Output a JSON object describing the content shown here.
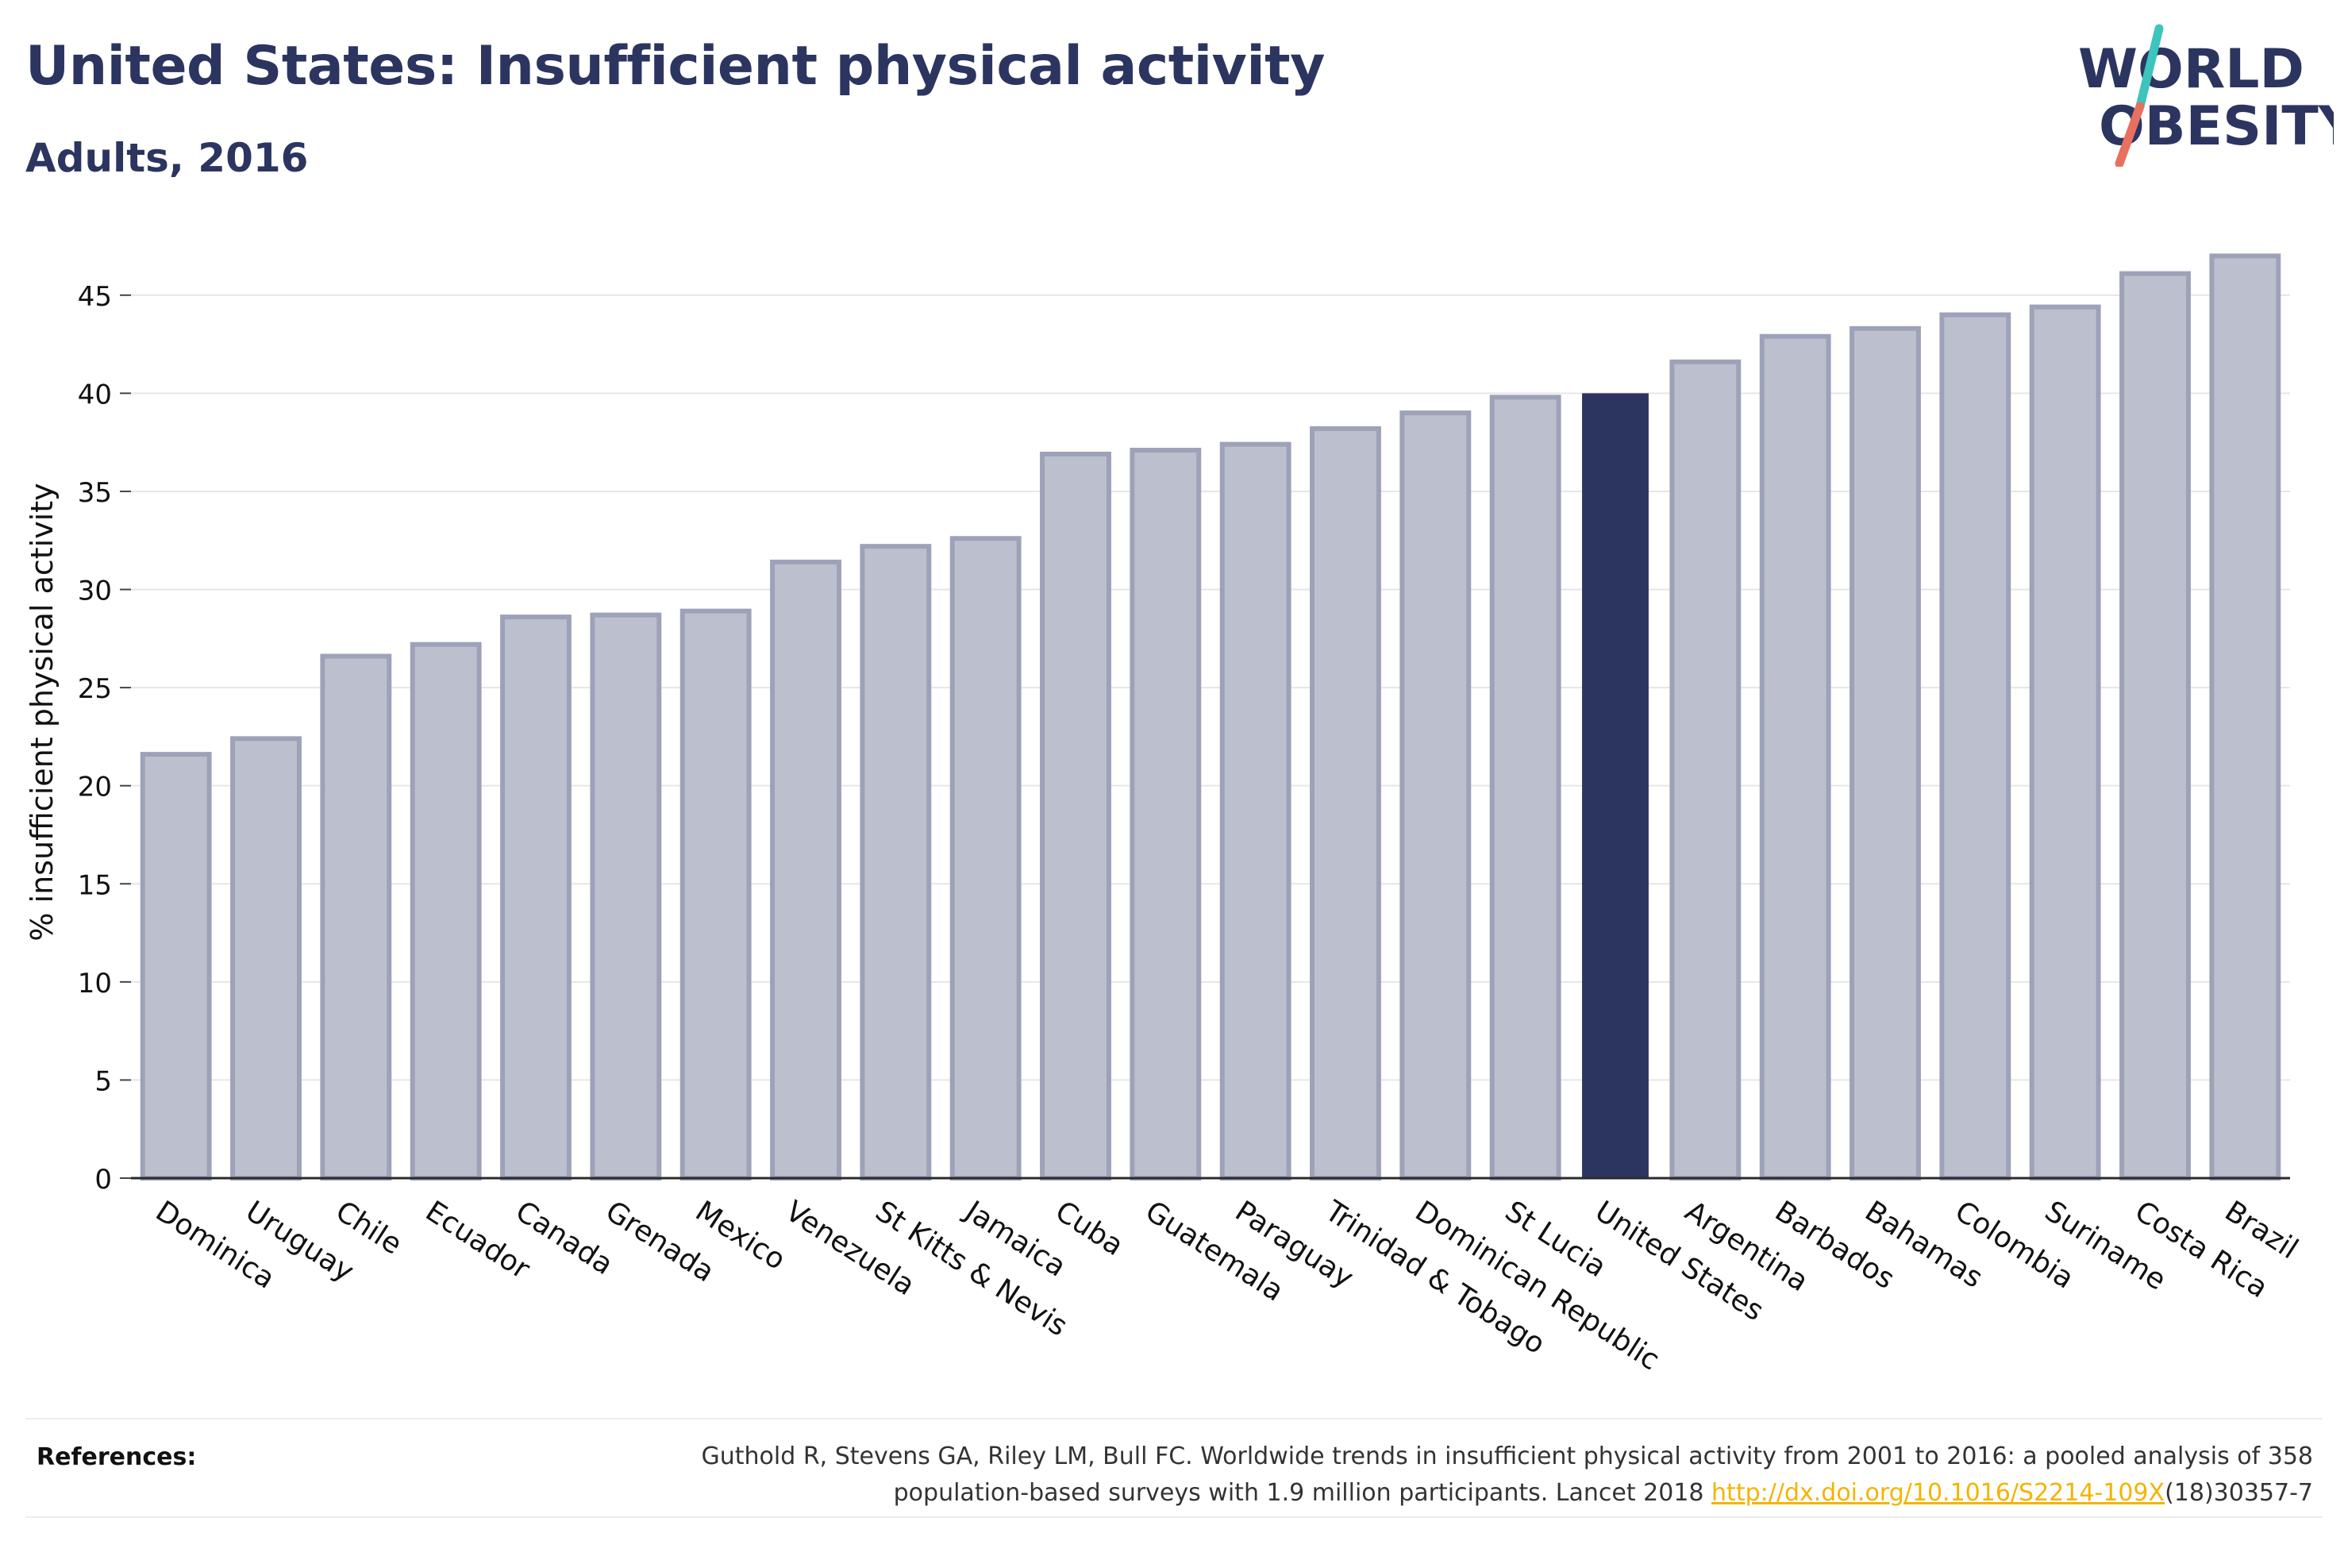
{
  "header": {
    "title": "United States: Insufficient physical activity",
    "subtitle": "Adults, 2016"
  },
  "logo": {
    "line1": "WORLD",
    "line2": "OBESITY",
    "colors": {
      "text": "#2b3560",
      "stroke_top": "#3cc4bd",
      "stroke_bottom": "#e8705f"
    }
  },
  "colors": {
    "bar_fill": "#bcc0ce",
    "bar_stroke": "#9da2b8",
    "highlight": "#2b3560",
    "grid": "#e6e6e6",
    "axis": "#2b2b2b"
  },
  "chart_data": {
    "type": "bar",
    "title": "",
    "xlabel": "",
    "ylabel": "% insufficient physical activity",
    "ylim": [
      0,
      47.5
    ],
    "yticks": [
      0,
      5,
      10,
      15,
      20,
      25,
      30,
      35,
      40,
      45
    ],
    "grid": true,
    "highlight": "United States",
    "categories": [
      "Dominica",
      "Uruguay",
      "Chile",
      "Ecuador",
      "Canada",
      "Grenada",
      "Mexico",
      "Venezuela",
      "St Kitts & Nevis",
      "Jamaica",
      "Cuba",
      "Guatemala",
      "Paraguay",
      "Trinidad & Tobago",
      "Dominican Republic",
      "St Lucia",
      "United States",
      "Argentina",
      "Barbados",
      "Bahamas",
      "Colombia",
      "Suriname",
      "Costa Rica",
      "Brazil"
    ],
    "values": [
      21.6,
      22.4,
      26.6,
      27.2,
      28.6,
      28.7,
      28.9,
      31.4,
      32.2,
      32.6,
      36.9,
      37.1,
      37.4,
      38.2,
      39.0,
      39.8,
      40.0,
      41.6,
      42.9,
      43.3,
      44.0,
      44.4,
      46.1,
      47.0
    ]
  },
  "references": {
    "label": "References:",
    "text_before": "Guthold R, Stevens GA, Riley LM, Bull FC. Worldwide trends in insufficient physical activity from 2001 to 2016: a pooled analysis of 358 population-based surveys with 1.9 million participants. Lancet 2018 ",
    "link": "http://dx.doi.org/10.1016/S2214-109X",
    "text_after": "(18)30357-7"
  }
}
